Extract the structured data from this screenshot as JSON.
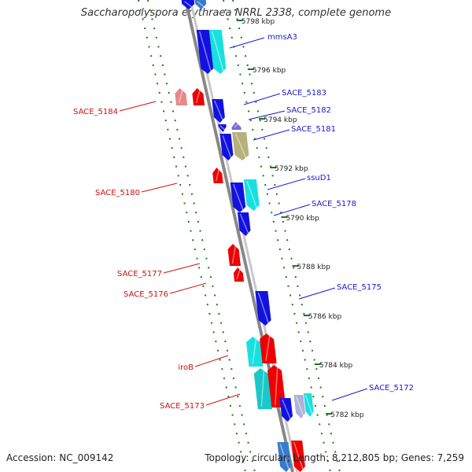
{
  "title": "Saccharopolyspora erythraea NRRL 2338, complete genome",
  "footer": {
    "accession": "Accession: NC_009142",
    "summary": "Topology: circular; Length: 8,212,805 bp; Genes: 7,259"
  },
  "colors": {
    "backbone": "#888888",
    "forward_label": "#1a1acc",
    "reverse_label": "#cc1111",
    "tick": "#1a7a1a",
    "blue": "#1212e0",
    "cyan": "#19e0e0",
    "red": "#ee0000",
    "pink": "#e88888",
    "olive": "#b8b07a",
    "purple": "#7a6ad6"
  },
  "scale_labels": [
    "5798 kbp",
    "5796 kbp",
    "5794 kbp",
    "5792 kbp",
    "5790 kbp",
    "5788 kbp",
    "5786 kbp",
    "5784 kbp",
    "5782 kbp"
  ],
  "forward_genes": [
    "mmsA3",
    "SACE_5183",
    "SACE_5182",
    "SACE_5181",
    "ssuD1",
    "SACE_5178",
    "SACE_5175",
    "SACE_5172"
  ],
  "reverse_genes": [
    "SACE_5184",
    "SACE_5180",
    "SACE_5177",
    "SACE_5176",
    "iroB",
    "SACE_5173"
  ]
}
